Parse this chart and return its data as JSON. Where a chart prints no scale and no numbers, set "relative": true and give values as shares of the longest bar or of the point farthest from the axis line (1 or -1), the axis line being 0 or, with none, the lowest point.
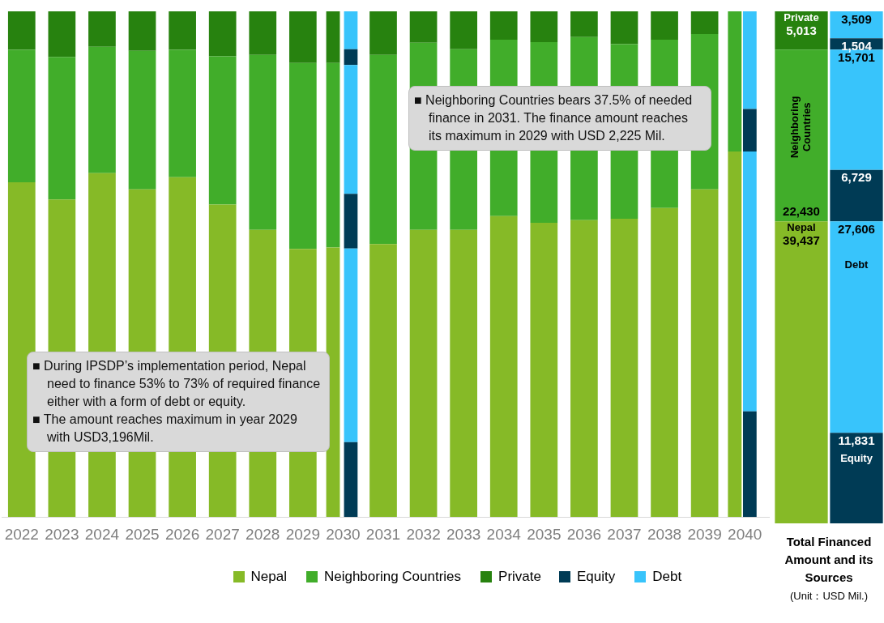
{
  "chart_data": [
    {
      "type": "bar",
      "stacked": true,
      "relative": true,
      "legend": "bottom",
      "categories": [
        "2022",
        "2023",
        "2024",
        "2025",
        "2026",
        "2027",
        "2028",
        "2029",
        "2030",
        "2031",
        "2032",
        "2033",
        "2034",
        "2035",
        "2036",
        "2037",
        "2038",
        "2039",
        "2040"
      ],
      "series": [
        {
          "name": "Nepal",
          "color": "#86ba27",
          "values": [
            0.662,
            0.628,
            0.68,
            0.648,
            0.672,
            0.618,
            0.568,
            0.53,
            0.533,
            0.54,
            0.568,
            0.568,
            0.595,
            0.582,
            0.587,
            0.59,
            0.611,
            0.648,
            0.723
          ]
        },
        {
          "name": "Neighboring Countries",
          "color": "#41ad2a",
          "values": [
            0.262,
            0.282,
            0.25,
            0.274,
            0.252,
            0.293,
            0.346,
            0.368,
            0.365,
            0.374,
            0.37,
            0.357,
            0.349,
            0.357,
            0.362,
            0.345,
            0.333,
            0.307,
            0.277
          ]
        },
        {
          "name": "Private",
          "color": "#27820f",
          "values": [
            0.076,
            0.09,
            0.07,
            0.078,
            0.076,
            0.089,
            0.086,
            0.102,
            0.102,
            0.086,
            0.062,
            0.075,
            0.056,
            0.061,
            0.051,
            0.065,
            0.056,
            0.045,
            0
          ]
        }
      ],
      "annotations": [
        "■ Neighboring Countries bears 37.5% of needed finance in 2031. The finance amount reaches its maximum in 2029 with USD 2,225 Mil.",
        "■ During IPSDP’s implementation period, Nepal need to finance 53% to 73% of required finance either with a form of debt or equity.",
        "■ The amount reaches maximum in year 2029 with USD3,196Mil."
      ]
    },
    {
      "type": "bar",
      "stacked": true,
      "relative": true,
      "legend": "bottom",
      "tick_labels": false,
      "categories": [
        "2022",
        "2023",
        "2024",
        "2025",
        "2026",
        "2027",
        "2028",
        "2029",
        "2030",
        "2031",
        "2032",
        "2033",
        "2034",
        "2035",
        "2036",
        "2037",
        "2038",
        "2039",
        "2040"
      ],
      "series": [
        {
          "name": "Equity",
          "color": "#003b55",
          "values": [
            null,
            null,
            null,
            null,
            null,
            null,
            null,
            null,
            0.148,
            null,
            null,
            null,
            null,
            null,
            null,
            null,
            null,
            null,
            0.209
          ]
        },
        {
          "name": "Debt",
          "color": "#38c4fb",
          "values": [
            null,
            null,
            null,
            null,
            null,
            null,
            null,
            null,
            0.383,
            null,
            null,
            null,
            null,
            null,
            null,
            null,
            null,
            null,
            0.514
          ]
        },
        {
          "color": "#003b55",
          "values": [
            null,
            null,
            null,
            null,
            null,
            null,
            null,
            null,
            0.108,
            null,
            null,
            null,
            null,
            null,
            null,
            null,
            null,
            null,
            0.084
          ]
        },
        {
          "color": "#38c4fb",
          "values": [
            null,
            null,
            null,
            null,
            null,
            null,
            null,
            null,
            0.255,
            null,
            null,
            null,
            null,
            null,
            null,
            null,
            null,
            null,
            0.193
          ]
        },
        {
          "color": "#003b55",
          "values": [
            null,
            null,
            null,
            null,
            null,
            null,
            null,
            null,
            0.031,
            null,
            null,
            null,
            null,
            null,
            null,
            null,
            null,
            null,
            null
          ]
        },
        {
          "color": "#38c4fb",
          "values": [
            null,
            null,
            null,
            null,
            null,
            null,
            null,
            null,
            0.075,
            null,
            null,
            null,
            null,
            null,
            null,
            null,
            null,
            null,
            null
          ]
        }
      ]
    },
    {
      "type": "bar",
      "stacked": true,
      "title": "Total Financed Amount and its Sources",
      "annotations": [
        "(Unit：USD Mil.)"
      ],
      "categories": [
        null,
        null
      ],
      "series": [
        {
          "name": "Nepal",
          "color": "#86ba27",
          "values": [
            39437,
            null
          ],
          "value_labels": [
            "39,437",
            null
          ]
        },
        {
          "name": "Neighboring Countries",
          "color": "#41ad2a",
          "values": [
            22430,
            null
          ],
          "value_labels": [
            "22,430",
            null
          ]
        },
        {
          "name": "Private",
          "color": "#27820f",
          "values": [
            5013,
            null
          ],
          "value_labels": [
            "5,013",
            null
          ]
        },
        {
          "name": "Equity",
          "color": "#003b55",
          "values": [
            null,
            11831
          ],
          "value_labels": [
            null,
            "11,831"
          ]
        },
        {
          "name": "Debt",
          "color": "#38c4fb",
          "values": [
            null,
            27606
          ],
          "value_labels": [
            null,
            "27,606"
          ]
        },
        {
          "color": "#003b55",
          "values": [
            null,
            6729
          ],
          "value_labels": [
            null,
            "6,729"
          ]
        },
        {
          "color": "#38c4fb",
          "values": [
            null,
            15701
          ],
          "value_labels": [
            null,
            "15,701"
          ]
        },
        {
          "color": "#003b55",
          "values": [
            null,
            1504
          ],
          "value_labels": [
            null,
            "1,504"
          ]
        },
        {
          "color": "#38c4fb",
          "values": [
            null,
            3509
          ],
          "value_labels": [
            null,
            "3,509"
          ]
        }
      ]
    }
  ]
}
